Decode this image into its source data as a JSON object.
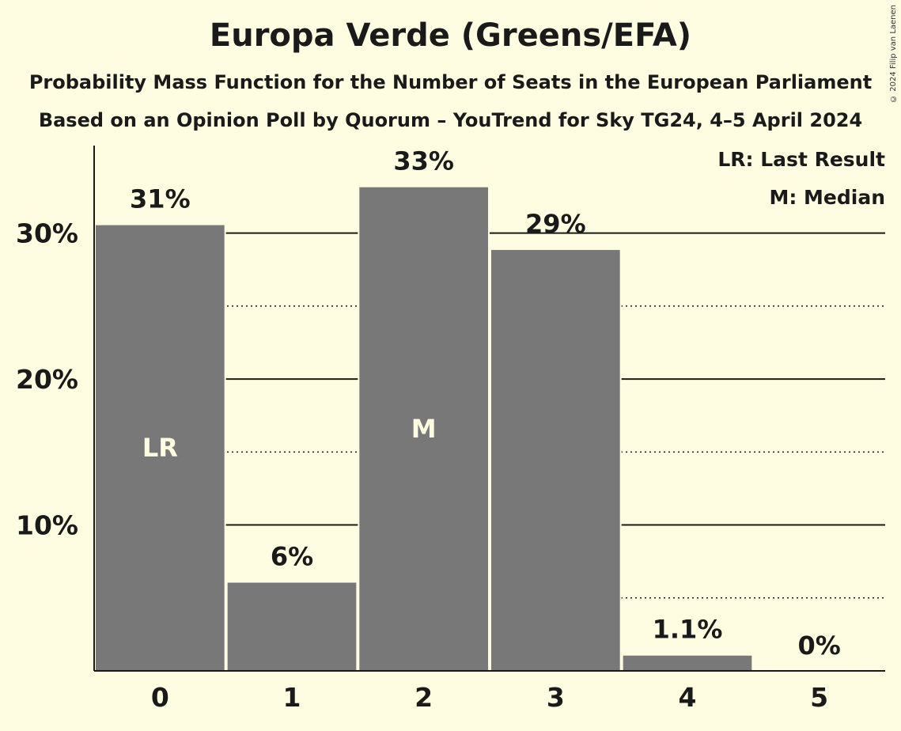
{
  "chart_data": {
    "type": "bar",
    "title": "Europa Verde (Greens/EFA)",
    "subtitle": "Probability Mass Function for the Number of Seats in the European Parliament",
    "subtitle2": "Based on an Opinion Poll by Quorum – YouTrend for Sky TG24, 4–5 April 2024",
    "copyright": "© 2024 Filip van Laenen",
    "categories": [
      "0",
      "1",
      "2",
      "3",
      "4",
      "5"
    ],
    "values": [
      30.6,
      6.1,
      33.2,
      28.9,
      1.1,
      0
    ],
    "value_labels": [
      "31%",
      "6%",
      "33%",
      "29%",
      "1.1%",
      "0%"
    ],
    "bar_markers": [
      "LR",
      "",
      "M",
      "",
      "",
      ""
    ],
    "ylim": [
      0,
      36
    ],
    "yticks": [
      10,
      20,
      30
    ],
    "ytick_labels": [
      "10%",
      "20%",
      "30%"
    ],
    "minor_gridlines": [
      5,
      15,
      25
    ],
    "legend": [
      "LR: Last Result",
      "M: Median"
    ],
    "legend_position": "top-right",
    "bar_color": "#787878",
    "background_color": "#fffde1"
  }
}
